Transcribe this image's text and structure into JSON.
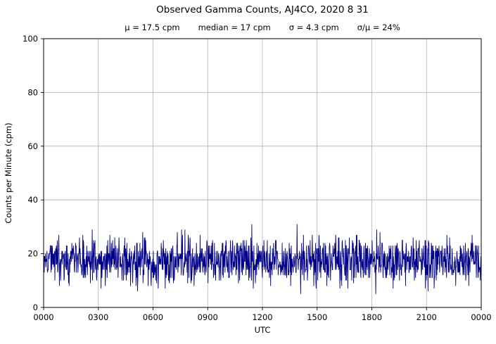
{
  "title": "Observed Gamma Counts, AJ4CO, 2020 8 31",
  "stats": {
    "mu_label": "μ = 17.5 cpm",
    "median_label": "median = 17 cpm",
    "sigma_label": "σ = 4.3 cpm",
    "ratio_label": "σ/μ = 24%"
  },
  "chart_data": {
    "type": "line",
    "title": "Observed Gamma Counts, AJ4CO, 2020 8 31",
    "subtitle_stats": {
      "mean_cpm": 17.5,
      "median_cpm": 17,
      "sigma_cpm": 4.3,
      "sigma_over_mu_percent": 24
    },
    "xlabel": "UTC",
    "ylabel": "Counts per Minute (cpm)",
    "x_tick_labels": [
      "0000",
      "0300",
      "0600",
      "0900",
      "1200",
      "1500",
      "1800",
      "2100",
      "0000"
    ],
    "x_tick_minutes": [
      0,
      180,
      360,
      540,
      720,
      900,
      1080,
      1260,
      1440
    ],
    "y_ticks": [
      0,
      20,
      40,
      60,
      80,
      100
    ],
    "ylim": [
      0,
      100
    ],
    "xlim_minutes": [
      0,
      1440
    ],
    "grid": true,
    "legend": "none",
    "line_color": "#00008B",
    "grid_color": "#b0b0b0",
    "series_description": "One-minute observed gamma count rate over 24 hours; random noise scattered about the mean, mostly between 10 and 25 cpm with occasional excursions near 5 and 31 cpm; no trend.",
    "observed_min_cpm": 5,
    "observed_max_cpm": 31,
    "n_points": 1440,
    "noise_model": "gaussian",
    "noise_seed": 20200831
  }
}
